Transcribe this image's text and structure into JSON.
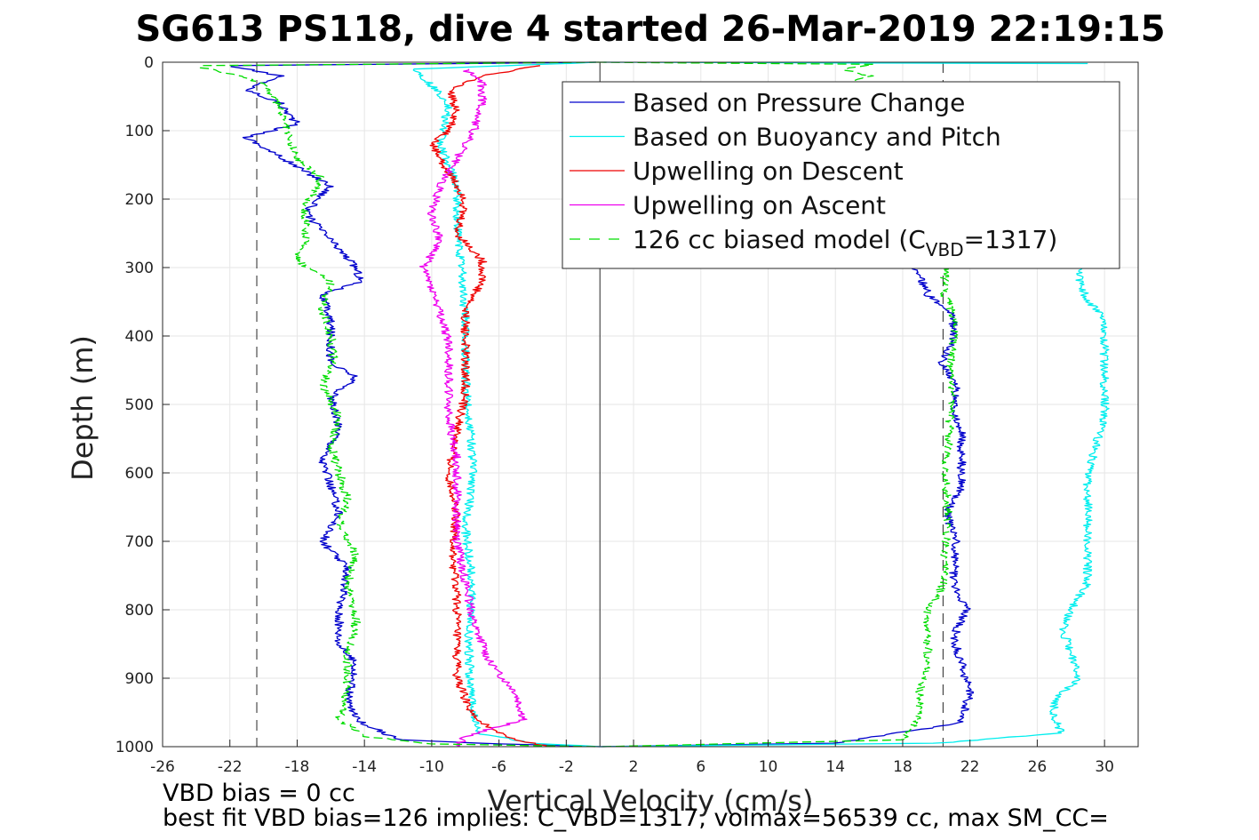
{
  "chart_data": {
    "type": "line",
    "title": "SG613 PS118, dive 4 started 26-Mar-2019 22:19:15",
    "xlabel": "Vertical Velocity (cm/s)",
    "ylabel": "Depth (m)",
    "xlim": [
      -26,
      32
    ],
    "ylim": [
      0,
      1000
    ],
    "y_reversed": true,
    "grid": true,
    "xticks": [
      "-26",
      "-22",
      "-18",
      "-14",
      "-10",
      "-6",
      "-2",
      "2",
      "6",
      "10",
      "14",
      "18",
      "22",
      "26",
      "30"
    ],
    "yticks": [
      "0",
      "100",
      "200",
      "300",
      "400",
      "500",
      "600",
      "700",
      "800",
      "900",
      "1000"
    ],
    "legend_position": "top-right",
    "reference_lines": [
      {
        "x": 0,
        "style": "solid"
      },
      {
        "x": -20.4,
        "style": "dashed"
      },
      {
        "x": 20.4,
        "style": "dashed"
      }
    ],
    "legend": [
      {
        "label": "Based on Pressure Change",
        "color": "#0000cc",
        "style": "solid"
      },
      {
        "label": "Based on Buoyancy and Pitch",
        "color": "#00f0f0",
        "style": "solid"
      },
      {
        "label": "Upwelling on Descent",
        "color": "#ee0000",
        "style": "solid"
      },
      {
        "label": "Upwelling on Ascent",
        "color": "#ee00ee",
        "style": "solid"
      },
      {
        "label": "126 cc biased model (C",
        "sub": "VBD",
        "suffix": "=1317)",
        "color": "#00dd00",
        "style": "dashed"
      }
    ],
    "series": [
      {
        "color": "#0000cc",
        "width": 1.3,
        "points": [
          [
            0,
            0
          ],
          [
            -22,
            5
          ],
          [
            -19,
            20
          ],
          [
            -21,
            40
          ],
          [
            -19,
            60
          ],
          [
            -18,
            90
          ],
          [
            -21,
            110
          ],
          [
            -17.5,
            160
          ],
          [
            -16,
            180
          ],
          [
            -17.5,
            220
          ],
          [
            -16,
            260
          ],
          [
            -14.5,
            300
          ],
          [
            -14.2,
            320
          ],
          [
            -16.5,
            340
          ],
          [
            -16,
            380
          ],
          [
            -16,
            440
          ],
          [
            -14.5,
            460
          ],
          [
            -16,
            490
          ],
          [
            -15.5,
            540
          ],
          [
            -16.5,
            580
          ],
          [
            -16,
            620
          ],
          [
            -15.5,
            660
          ],
          [
            -16.5,
            700
          ],
          [
            -15,
            740
          ],
          [
            -15.5,
            800
          ],
          [
            -15.5,
            850
          ],
          [
            -14.5,
            880
          ],
          [
            -15,
            930
          ],
          [
            -14.5,
            960
          ],
          [
            -12,
            990
          ],
          [
            -6,
            996
          ],
          [
            0,
            1000
          ]
        ]
      },
      {
        "color": "#0000cc",
        "width": 1.3,
        "points": [
          [
            0,
            1000
          ],
          [
            14,
            995
          ],
          [
            21.5,
            965
          ],
          [
            22,
            920
          ],
          [
            21.5,
            880
          ],
          [
            21,
            840
          ],
          [
            21.8,
            800
          ],
          [
            21,
            760
          ],
          [
            21.2,
            700
          ],
          [
            20.6,
            660
          ],
          [
            21.5,
            620
          ],
          [
            21.5,
            580
          ],
          [
            21.5,
            540
          ],
          [
            21,
            500
          ],
          [
            21.2,
            470
          ],
          [
            20.3,
            440
          ],
          [
            21,
            410
          ],
          [
            21,
            370
          ],
          [
            19.5,
            340
          ],
          [
            19,
            310
          ],
          [
            18.5,
            290
          ]
        ]
      },
      {
        "color": "#00eeee",
        "width": 1.3,
        "points": [
          [
            0,
            0
          ],
          [
            -11,
            10
          ],
          [
            -9,
            60
          ],
          [
            -9.5,
            120
          ],
          [
            -8.5,
            180
          ],
          [
            -8.5,
            240
          ],
          [
            -8.2,
            300
          ],
          [
            -8,
            380
          ],
          [
            -8,
            460
          ],
          [
            -7.7,
            540
          ],
          [
            -7.5,
            600
          ],
          [
            -8,
            680
          ],
          [
            -7.6,
            760
          ],
          [
            -7.8,
            840
          ],
          [
            -7.7,
            920
          ],
          [
            -7.3,
            980
          ],
          [
            -4,
            995
          ],
          [
            0,
            1000
          ]
        ]
      },
      {
        "color": "#00eeee",
        "width": 1.3,
        "points": [
          [
            0,
            1000
          ],
          [
            20,
            995
          ],
          [
            27.5,
            980
          ],
          [
            27,
            960
          ],
          [
            27,
            930
          ],
          [
            28.5,
            900
          ],
          [
            28,
            860
          ],
          [
            27.5,
            830
          ],
          [
            28,
            800
          ],
          [
            29,
            760
          ],
          [
            29,
            720
          ],
          [
            29,
            680
          ],
          [
            29,
            640
          ],
          [
            29,
            600
          ],
          [
            29.5,
            560
          ],
          [
            30,
            520
          ],
          [
            30,
            480
          ],
          [
            30,
            440
          ],
          [
            30,
            400
          ],
          [
            30,
            370
          ],
          [
            29,
            350
          ],
          [
            28.5,
            320
          ],
          [
            28.5,
            290
          ]
        ]
      },
      {
        "color": "#00eeee",
        "width": 1.3,
        "points": [
          [
            0,
            0
          ],
          [
            29,
            2
          ]
        ]
      },
      {
        "color": "#ee0000",
        "width": 1.3,
        "points": [
          [
            -3.5,
            5
          ],
          [
            -7,
            20
          ],
          [
            -9,
            40
          ],
          [
            -8.5,
            70
          ],
          [
            -9,
            100
          ],
          [
            -10,
            120
          ],
          [
            -9,
            160
          ],
          [
            -8,
            200
          ],
          [
            -8.5,
            250
          ],
          [
            -7,
            290
          ],
          [
            -7,
            320
          ],
          [
            -8,
            360
          ],
          [
            -8,
            420
          ],
          [
            -8,
            480
          ],
          [
            -8.5,
            540
          ],
          [
            -9,
            600
          ],
          [
            -8.5,
            660
          ],
          [
            -8.8,
            720
          ],
          [
            -8.5,
            780
          ],
          [
            -8.5,
            840
          ],
          [
            -8.5,
            900
          ],
          [
            -7.5,
            960
          ],
          [
            -5,
            990
          ],
          [
            -3,
            1000
          ]
        ]
      },
      {
        "color": "#ee00ee",
        "width": 1.3,
        "points": [
          [
            -8,
            10
          ],
          [
            -7,
            30
          ],
          [
            -7,
            60
          ],
          [
            -7.5,
            100
          ],
          [
            -8.5,
            140
          ],
          [
            -9.5,
            180
          ],
          [
            -10,
            220
          ],
          [
            -9.5,
            260
          ],
          [
            -10.5,
            300
          ],
          [
            -10,
            330
          ],
          [
            -9.5,
            370
          ],
          [
            -9,
            410
          ],
          [
            -9,
            460
          ],
          [
            -9,
            520
          ],
          [
            -8.5,
            580
          ],
          [
            -8.5,
            640
          ],
          [
            -8.5,
            700
          ],
          [
            -8,
            760
          ],
          [
            -7.5,
            820
          ],
          [
            -6.5,
            880
          ],
          [
            -5,
            920
          ],
          [
            -4.5,
            960
          ],
          [
            -8,
            985
          ],
          [
            -8.5,
            1000
          ]
        ]
      },
      {
        "color": "#00dd00",
        "width": 1.3,
        "dashed": true,
        "points": [
          [
            0,
            0
          ],
          [
            -24,
            5
          ],
          [
            -20,
            30
          ],
          [
            -19,
            70
          ],
          [
            -18.5,
            110
          ],
          [
            -18,
            140
          ],
          [
            -16.5,
            170
          ],
          [
            -17.5,
            210
          ],
          [
            -17.5,
            260
          ],
          [
            -18,
            290
          ],
          [
            -16,
            320
          ],
          [
            -16.5,
            360
          ],
          [
            -16,
            400
          ],
          [
            -15.8,
            440
          ],
          [
            -16.5,
            470
          ],
          [
            -15.5,
            520
          ],
          [
            -16,
            560
          ],
          [
            -15.5,
            600
          ],
          [
            -15,
            640
          ],
          [
            -15.5,
            680
          ],
          [
            -14.5,
            720
          ],
          [
            -15,
            760
          ],
          [
            -14.5,
            820
          ],
          [
            -15,
            870
          ],
          [
            -15,
            920
          ],
          [
            -15.5,
            960
          ],
          [
            -14,
            985
          ],
          [
            -10,
            996
          ],
          [
            0,
            1000
          ]
        ]
      },
      {
        "color": "#00dd00",
        "width": 1.3,
        "dashed": true,
        "points": [
          [
            0,
            1000
          ],
          [
            18,
            990
          ],
          [
            19,
            960
          ],
          [
            19,
            920
          ],
          [
            19.5,
            880
          ],
          [
            19.5,
            840
          ],
          [
            19.5,
            800
          ],
          [
            20.5,
            760
          ],
          [
            20.5,
            720
          ],
          [
            20.7,
            680
          ],
          [
            20.7,
            640
          ],
          [
            20.5,
            600
          ],
          [
            20.7,
            560
          ],
          [
            20.8,
            520
          ],
          [
            21,
            480
          ],
          [
            20.8,
            440
          ],
          [
            21,
            400
          ],
          [
            21,
            370
          ],
          [
            20.5,
            340
          ],
          [
            20.5,
            310
          ],
          [
            20.5,
            290
          ]
        ]
      },
      {
        "color": "#00dd00",
        "width": 1.3,
        "dashed": true,
        "points": [
          [
            0,
            0
          ],
          [
            16,
            3
          ],
          [
            14.5,
            10
          ],
          [
            16,
            20
          ],
          [
            15,
            30
          ]
        ]
      }
    ],
    "annotations": [
      "VBD bias = 0 cc",
      "best fit VBD bias=126 implies: C_VBD=1317, volmax=56539 cc, max SM_CC="
    ]
  }
}
